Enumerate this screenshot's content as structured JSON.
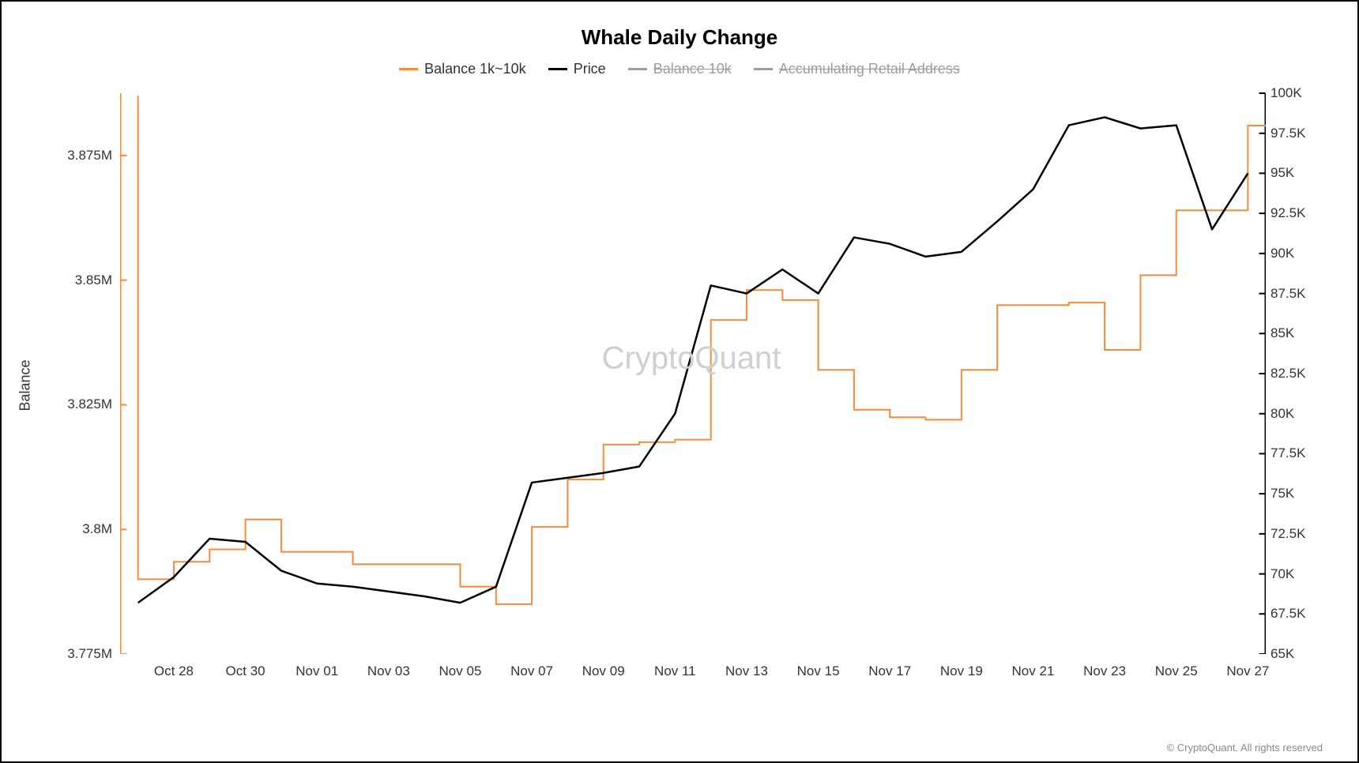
{
  "chart": {
    "type": "line",
    "title": "Whale Daily Change",
    "title_fontsize": 26,
    "title_fontweight": 700,
    "background_color": "#ffffff",
    "border_color": "#000000",
    "watermark_text": "CryptoQuant",
    "watermark_color": "#cfcfcf",
    "watermark_fontsize": 40,
    "copyright": "© CryptoQuant. All rights reserved",
    "y_left": {
      "label": "Balance",
      "min": 3.775,
      "max": 3.8875,
      "ticks": [
        3.775,
        3.8,
        3.825,
        3.85,
        3.875
      ],
      "tick_labels": [
        "3.775M",
        "3.8M",
        "3.825M",
        "3.85M",
        "3.875M"
      ],
      "axis_color": "#f78b3c",
      "tick_fontsize": 17
    },
    "y_right": {
      "min": 65,
      "max": 100,
      "ticks": [
        65,
        67.5,
        70,
        72.5,
        75,
        77.5,
        80,
        82.5,
        85,
        87.5,
        90,
        92.5,
        95,
        97.5,
        100
      ],
      "tick_labels": [
        "65K",
        "67.5K",
        "70K",
        "72.5K",
        "75K",
        "77.5K",
        "80K",
        "82.5K",
        "85K",
        "87.5K",
        "90K",
        "92.5K",
        "95K",
        "97.5K",
        "100K"
      ],
      "axis_color": "#000000",
      "tick_fontsize": 17
    },
    "x": {
      "categories": [
        "Oct 27",
        "Oct 28",
        "Oct 29",
        "Oct 30",
        "Oct 31",
        "Nov 01",
        "Nov 02",
        "Nov 03",
        "Nov 04",
        "Nov 05",
        "Nov 06",
        "Nov 07",
        "Nov 08",
        "Nov 09",
        "Nov 10",
        "Nov 11",
        "Nov 12",
        "Nov 13",
        "Nov 14",
        "Nov 15",
        "Nov 16",
        "Nov 17",
        "Nov 18",
        "Nov 19",
        "Nov 20",
        "Nov 21",
        "Nov 22",
        "Nov 23",
        "Nov 24",
        "Nov 25",
        "Nov 26",
        "Nov 27"
      ],
      "tick_indices": [
        1,
        3,
        5,
        7,
        9,
        11,
        13,
        15,
        17,
        19,
        21,
        23,
        25,
        27,
        29,
        31
      ],
      "tick_labels": [
        "Oct 28",
        "Oct 30",
        "Nov 01",
        "Nov 03",
        "Nov 05",
        "Nov 07",
        "Nov 09",
        "Nov 11",
        "Nov 13",
        "Nov 15",
        "Nov 17",
        "Nov 19",
        "Nov 21",
        "Nov 23",
        "Nov 25",
        "Nov 27"
      ],
      "tick_fontsize": 17
    },
    "legend": {
      "items": [
        {
          "label": "Balance 1k~10k",
          "color": "#f78b3c",
          "active": true
        },
        {
          "label": "Price",
          "color": "#000000",
          "active": true
        },
        {
          "label": "Balance 10k",
          "color": "#9e9e9e",
          "active": false
        },
        {
          "label": "Accumulating Retail Address",
          "color": "#9e9e9e",
          "active": false
        }
      ],
      "fontsize": 18
    },
    "series": {
      "balance_1k_10k": {
        "axis": "left",
        "color": "#f78b3c",
        "line_width": 2,
        "step": "hv",
        "values": [
          3.79,
          3.7935,
          3.796,
          3.802,
          3.7955,
          3.7955,
          3.793,
          3.793,
          3.793,
          3.7885,
          3.785,
          3.8005,
          3.81,
          3.817,
          3.8175,
          3.818,
          3.842,
          3.848,
          3.846,
          3.832,
          3.824,
          3.8225,
          3.822,
          3.832,
          3.845,
          3.845,
          3.8455,
          3.836,
          3.851,
          3.864,
          3.864,
          3.881
        ],
        "initial_vertical_drop_from": 3.887
      },
      "price": {
        "axis": "right",
        "color": "#000000",
        "line_width": 2.5,
        "step": "linear",
        "values": [
          68.2,
          69.8,
          72.2,
          72.0,
          70.2,
          69.4,
          69.2,
          68.9,
          68.6,
          68.2,
          69.2,
          75.7,
          76.0,
          76.3,
          76.7,
          80.0,
          88.0,
          87.5,
          89.0,
          87.5,
          91.0,
          90.6,
          89.8,
          90.1,
          92.0,
          94.0,
          98.0,
          98.5,
          97.8,
          98.0,
          91.5,
          95.0
        ]
      }
    }
  }
}
